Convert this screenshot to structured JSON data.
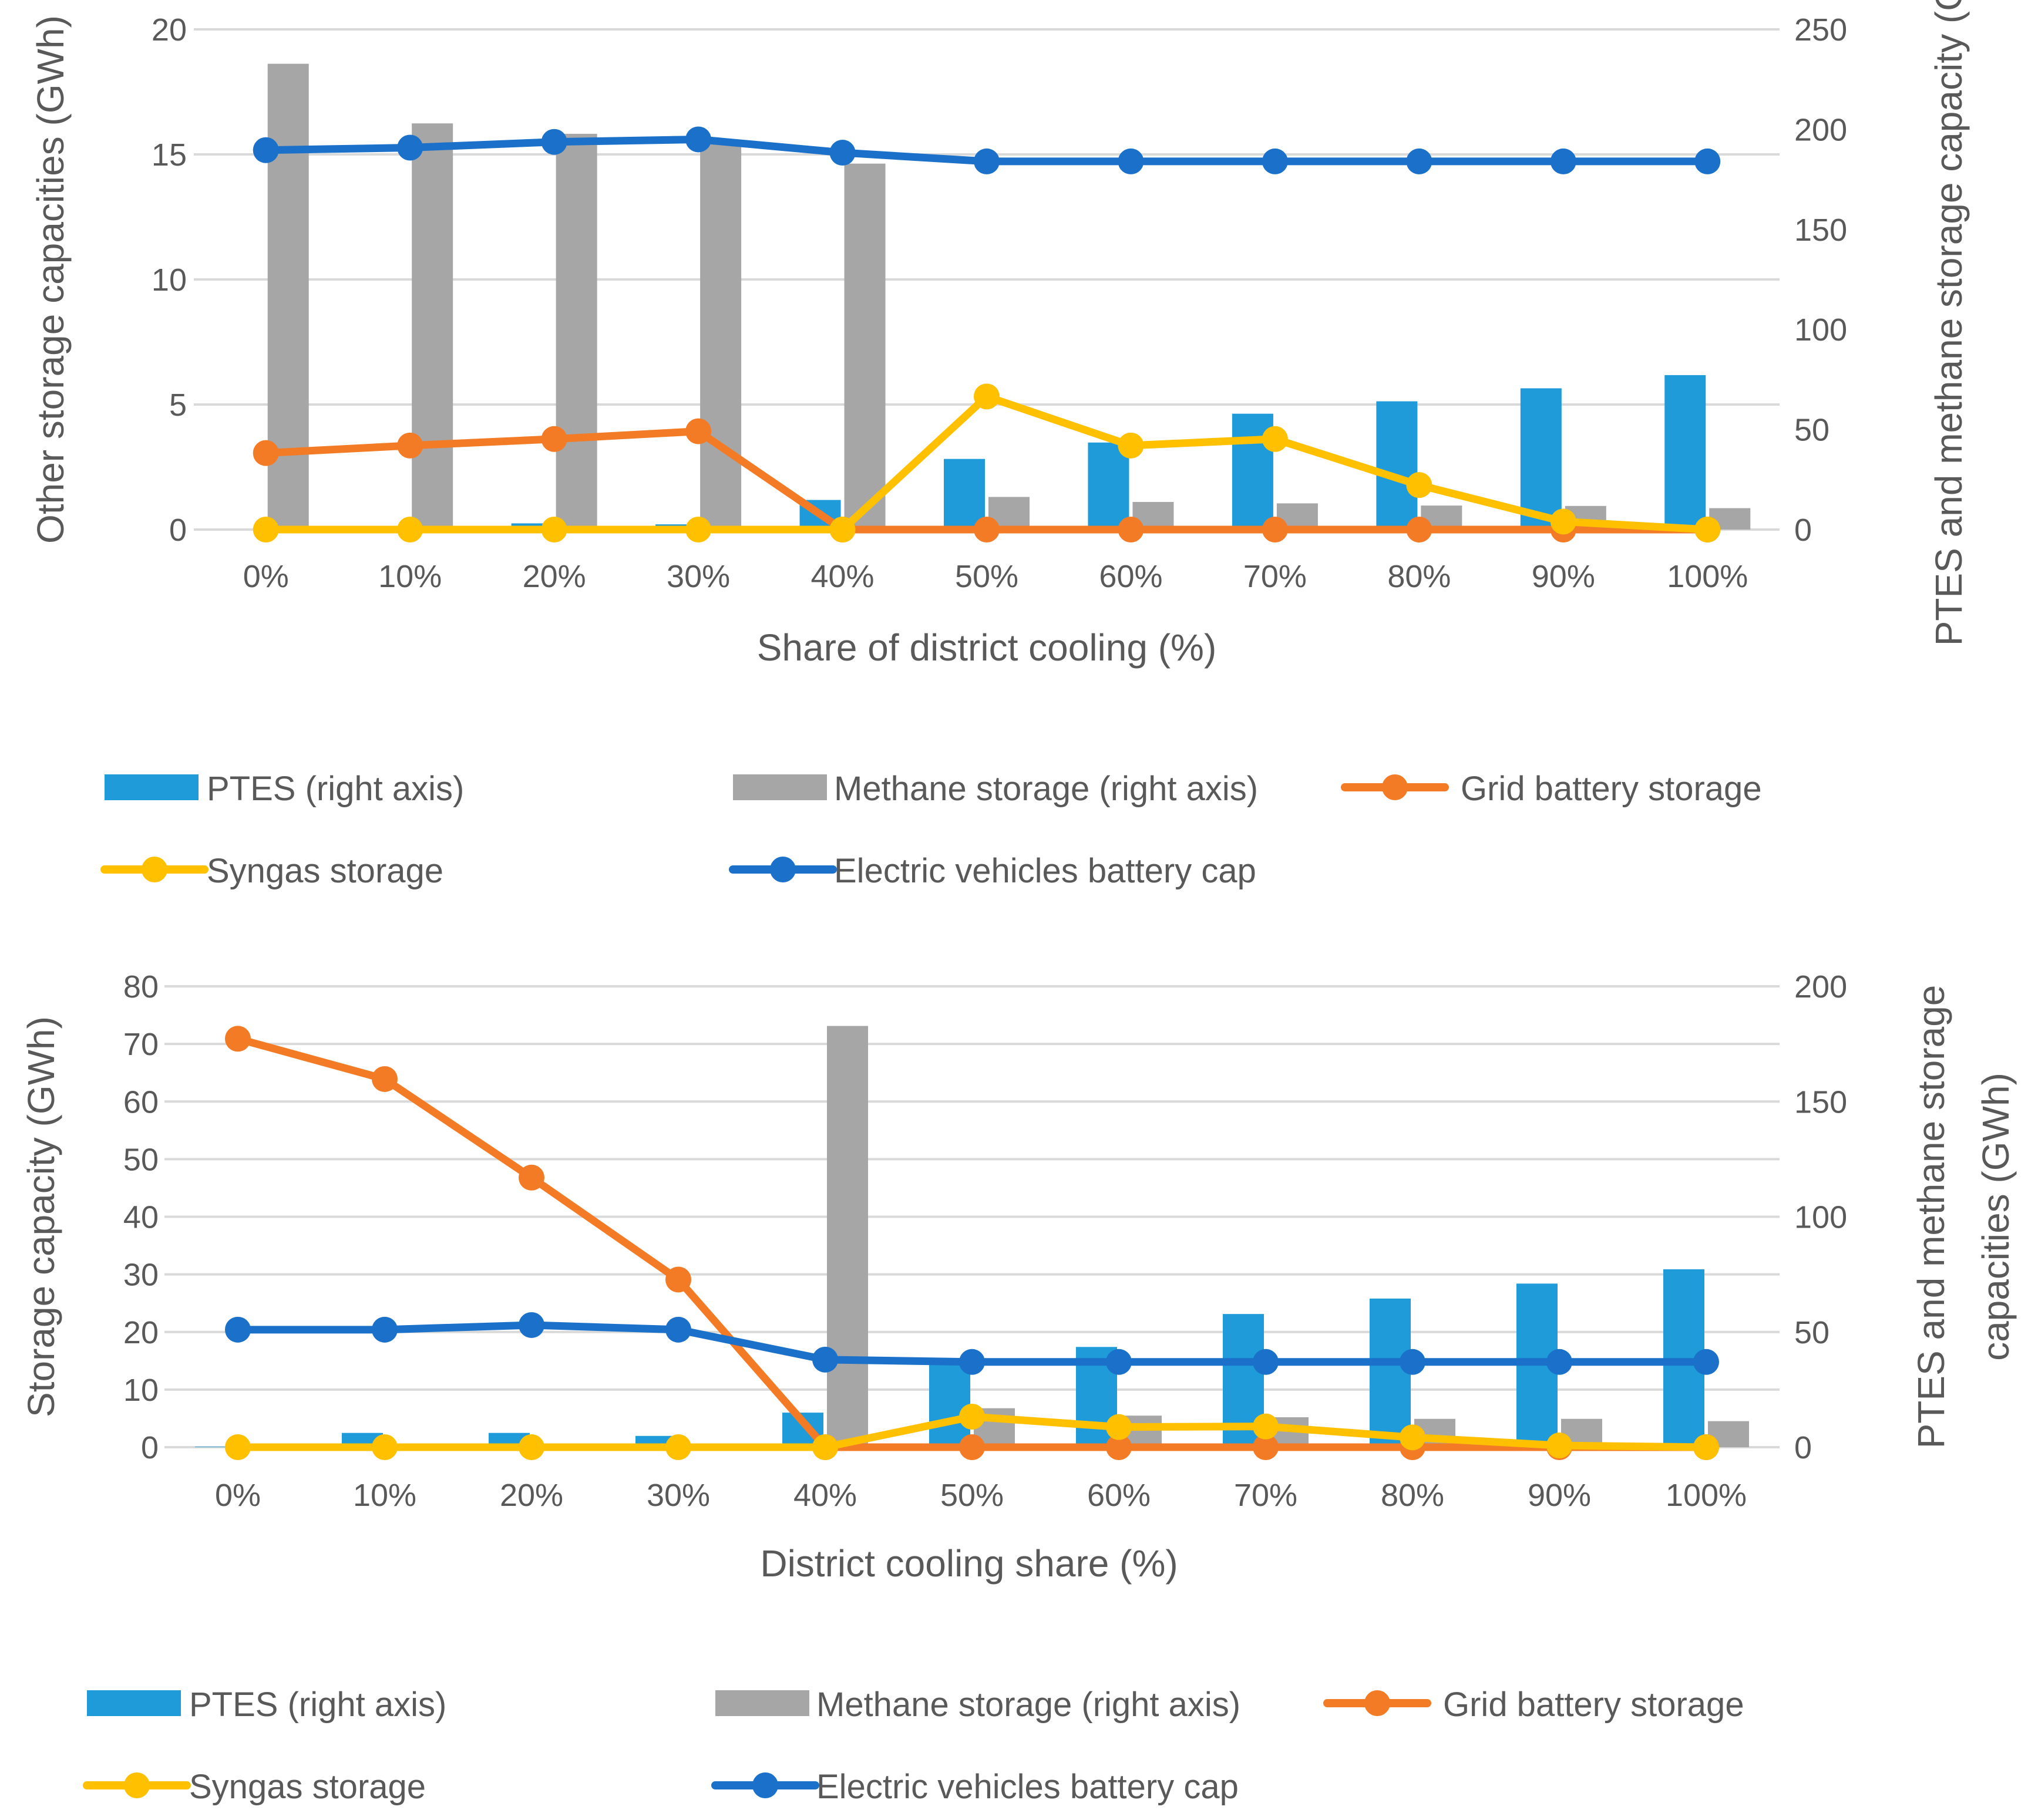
{
  "colors": {
    "ptes": "#1f9bd9",
    "methane": "#a6a6a6",
    "grid": "#f47b25",
    "syngas": "#ffc000",
    "ev": "#1b71c9",
    "gridline": "#d9d9d9",
    "text": "#595959"
  },
  "chart_data": [
    {
      "type": "bar+line",
      "title": "",
      "categories": [
        "0%",
        "10%",
        "20%",
        "30%",
        "40%",
        "50%",
        "60%",
        "70%",
        "80%",
        "90%",
        "100%"
      ],
      "xlabel": "Share of district cooling (%)",
      "ylabel_left": "Other storage capacities (GWh)",
      "ylabel_right": "PTES and methane storage capacity (GWh)",
      "ylim_left": [
        0,
        20
      ],
      "yticks_left": [
        "0",
        "5",
        "10",
        "15",
        "20"
      ],
      "ylim_right": [
        0,
        250
      ],
      "yticks_right": [
        "0",
        "50",
        "100",
        "150",
        "200",
        "250"
      ],
      "grid": true,
      "legend_position": "bottom",
      "series": [
        {
          "name": "PTES (right axis)",
          "kind": "bar",
          "axis": "right",
          "color_key": "ptes",
          "values": [
            0,
            0,
            3.1,
            2.6,
            14.8,
            35.3,
            43.5,
            57.9,
            64.1,
            70.6,
            77.2
          ]
        },
        {
          "name": "Methane storage (right axis)",
          "kind": "bar",
          "axis": "right",
          "color_key": "methane",
          "values": [
            232.8,
            203.0,
            197.8,
            194.6,
            182.9,
            16.3,
            13.8,
            13.1,
            12.0,
            11.8,
            10.7
          ]
        },
        {
          "name": "Grid battery storage",
          "kind": "line",
          "axis": "left",
          "color_key": "grid",
          "values": [
            3.06,
            3.36,
            3.62,
            3.93,
            0,
            0,
            0,
            0,
            0,
            0,
            0
          ]
        },
        {
          "name": "Syngas storage",
          "kind": "line",
          "axis": "left",
          "color_key": "syngas",
          "values": [
            0,
            0,
            0,
            0,
            0,
            5.32,
            3.36,
            3.62,
            1.78,
            0.32,
            0
          ]
        },
        {
          "name": "Electric vehicles battery cap",
          "kind": "line",
          "axis": "left",
          "color_key": "ev",
          "values": [
            15.17,
            15.27,
            15.5,
            15.6,
            15.07,
            14.72,
            14.72,
            14.72,
            14.72,
            14.72,
            14.72
          ]
        }
      ]
    },
    {
      "type": "bar+line",
      "title": "",
      "categories": [
        "0%",
        "10%",
        "20%",
        "30%",
        "40%",
        "50%",
        "60%",
        "70%",
        "80%",
        "90%",
        "100%"
      ],
      "xlabel": "District cooling share (%)",
      "ylabel_left": "Storage capacity (GWh)",
      "ylabel_right_lines": [
        "PTES and methane storage",
        "capacities (GWh)"
      ],
      "ylim_left": [
        0,
        80
      ],
      "yticks_left": [
        "0",
        "10",
        "20",
        "30",
        "40",
        "50",
        "60",
        "70",
        "80"
      ],
      "ylim_right": [
        0,
        200
      ],
      "yticks_right": [
        "0",
        "50",
        "100",
        "150",
        "200"
      ],
      "grid": true,
      "legend_position": "bottom",
      "series": [
        {
          "name": "PTES (right axis)",
          "kind": "bar",
          "axis": "right",
          "color_key": "ptes",
          "values": [
            0.2,
            6.2,
            6.2,
            4.9,
            15.0,
            38.0,
            43.5,
            57.8,
            64.5,
            71.0,
            77.2
          ]
        },
        {
          "name": "Methane storage (right axis)",
          "kind": "bar",
          "axis": "right",
          "color_key": "methane",
          "values": [
            0,
            0,
            0,
            0,
            182.8,
            16.9,
            13.7,
            13.0,
            12.3,
            12.3,
            11.3
          ]
        },
        {
          "name": "Grid battery storage",
          "kind": "line",
          "axis": "left",
          "color_key": "grid",
          "values": [
            70.9,
            63.9,
            46.8,
            29.1,
            0,
            0,
            0,
            0,
            0,
            0,
            0
          ]
        },
        {
          "name": "Syngas storage",
          "kind": "line",
          "axis": "left",
          "color_key": "syngas",
          "values": [
            0,
            0,
            0,
            0,
            0,
            5.3,
            3.5,
            3.6,
            1.7,
            0.3,
            0
          ]
        },
        {
          "name": "Electric vehicles battery cap",
          "kind": "line",
          "axis": "left",
          "color_key": "ev",
          "values": [
            20.4,
            20.4,
            21.2,
            20.4,
            15.2,
            14.8,
            14.8,
            14.8,
            14.8,
            14.8,
            14.8
          ]
        }
      ]
    }
  ]
}
